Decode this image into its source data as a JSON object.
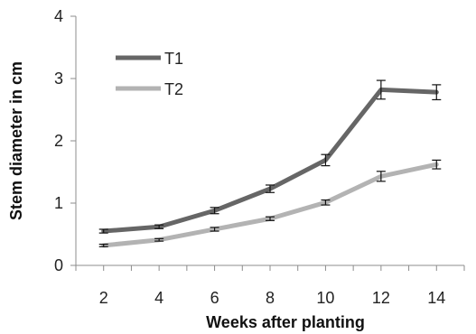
{
  "chart_data": {
    "type": "line",
    "xlabel": "Weeks after planting",
    "ylabel": "Stem diameter in cm",
    "x": [
      2,
      4,
      6,
      8,
      10,
      12,
      14
    ],
    "xlim": [
      1,
      15
    ],
    "ylim": [
      0,
      4
    ],
    "yticks": [
      0,
      1,
      2,
      3,
      4
    ],
    "grid": false,
    "legend_position": "top-left",
    "series": [
      {
        "name": "T1",
        "color": "#666666",
        "values": [
          0.55,
          0.62,
          0.88,
          1.23,
          1.69,
          2.82,
          2.78
        ],
        "errors": [
          0.03,
          0.03,
          0.05,
          0.06,
          0.09,
          0.15,
          0.12
        ]
      },
      {
        "name": "T2",
        "color": "#b3b3b3",
        "values": [
          0.32,
          0.41,
          0.58,
          0.75,
          1.01,
          1.43,
          1.62
        ],
        "errors": [
          0.02,
          0.02,
          0.03,
          0.03,
          0.04,
          0.08,
          0.07
        ]
      }
    ]
  }
}
